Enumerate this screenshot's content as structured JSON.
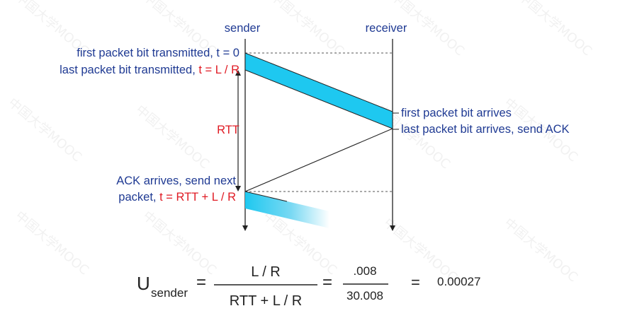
{
  "labels": {
    "sender": "sender",
    "receiver": "receiver",
    "first_bit_sent_prefix": "first packet bit transmitted, t = 0",
    "last_bit_sent_prefix": "last packet bit transmitted, ",
    "last_bit_sent_time": "t = L / R",
    "rtt": "RTT",
    "first_bit_arrives": "first packet bit arrives",
    "last_bit_arrives": "last packet bit arrives, send ACK",
    "ack_arrives_line1": "ACK arrives, send next",
    "ack_arrives_line2_prefix": "packet, ",
    "ack_arrives_line2_time": "t = RTT + L / R"
  },
  "formula": {
    "u": "U",
    "sub": "sender",
    "eq1": "=",
    "frac1_num": "L / R",
    "frac1_den": "RTT + L / R",
    "eq2": "=",
    "frac2_num": ".008",
    "frac2_den": "30.008",
    "eq3": "=",
    "result": "0.00027"
  },
  "watermark": "中国大学MOOC",
  "colors": {
    "label_blue": "#1f3a93",
    "highlight_red": "#e01b24",
    "packet_fill": "#1ec8f0",
    "line": "#222222"
  }
}
